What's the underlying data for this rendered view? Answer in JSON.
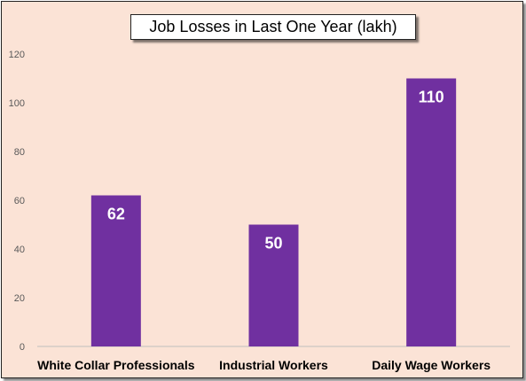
{
  "chart_data": {
    "type": "bar",
    "title": "Job Losses in Last One Year (lakh)",
    "categories": [
      "White Collar Professionals",
      "Industrial Workers",
      "Daily Wage Workers"
    ],
    "values": [
      62,
      50,
      110
    ],
    "ylim": [
      0,
      120
    ],
    "yticks": [
      0,
      20,
      40,
      60,
      80,
      100,
      120
    ],
    "xlabel": "",
    "ylabel": "",
    "grid": false,
    "bar_color": "#7030a0",
    "background_color": "#fbe3d6"
  }
}
